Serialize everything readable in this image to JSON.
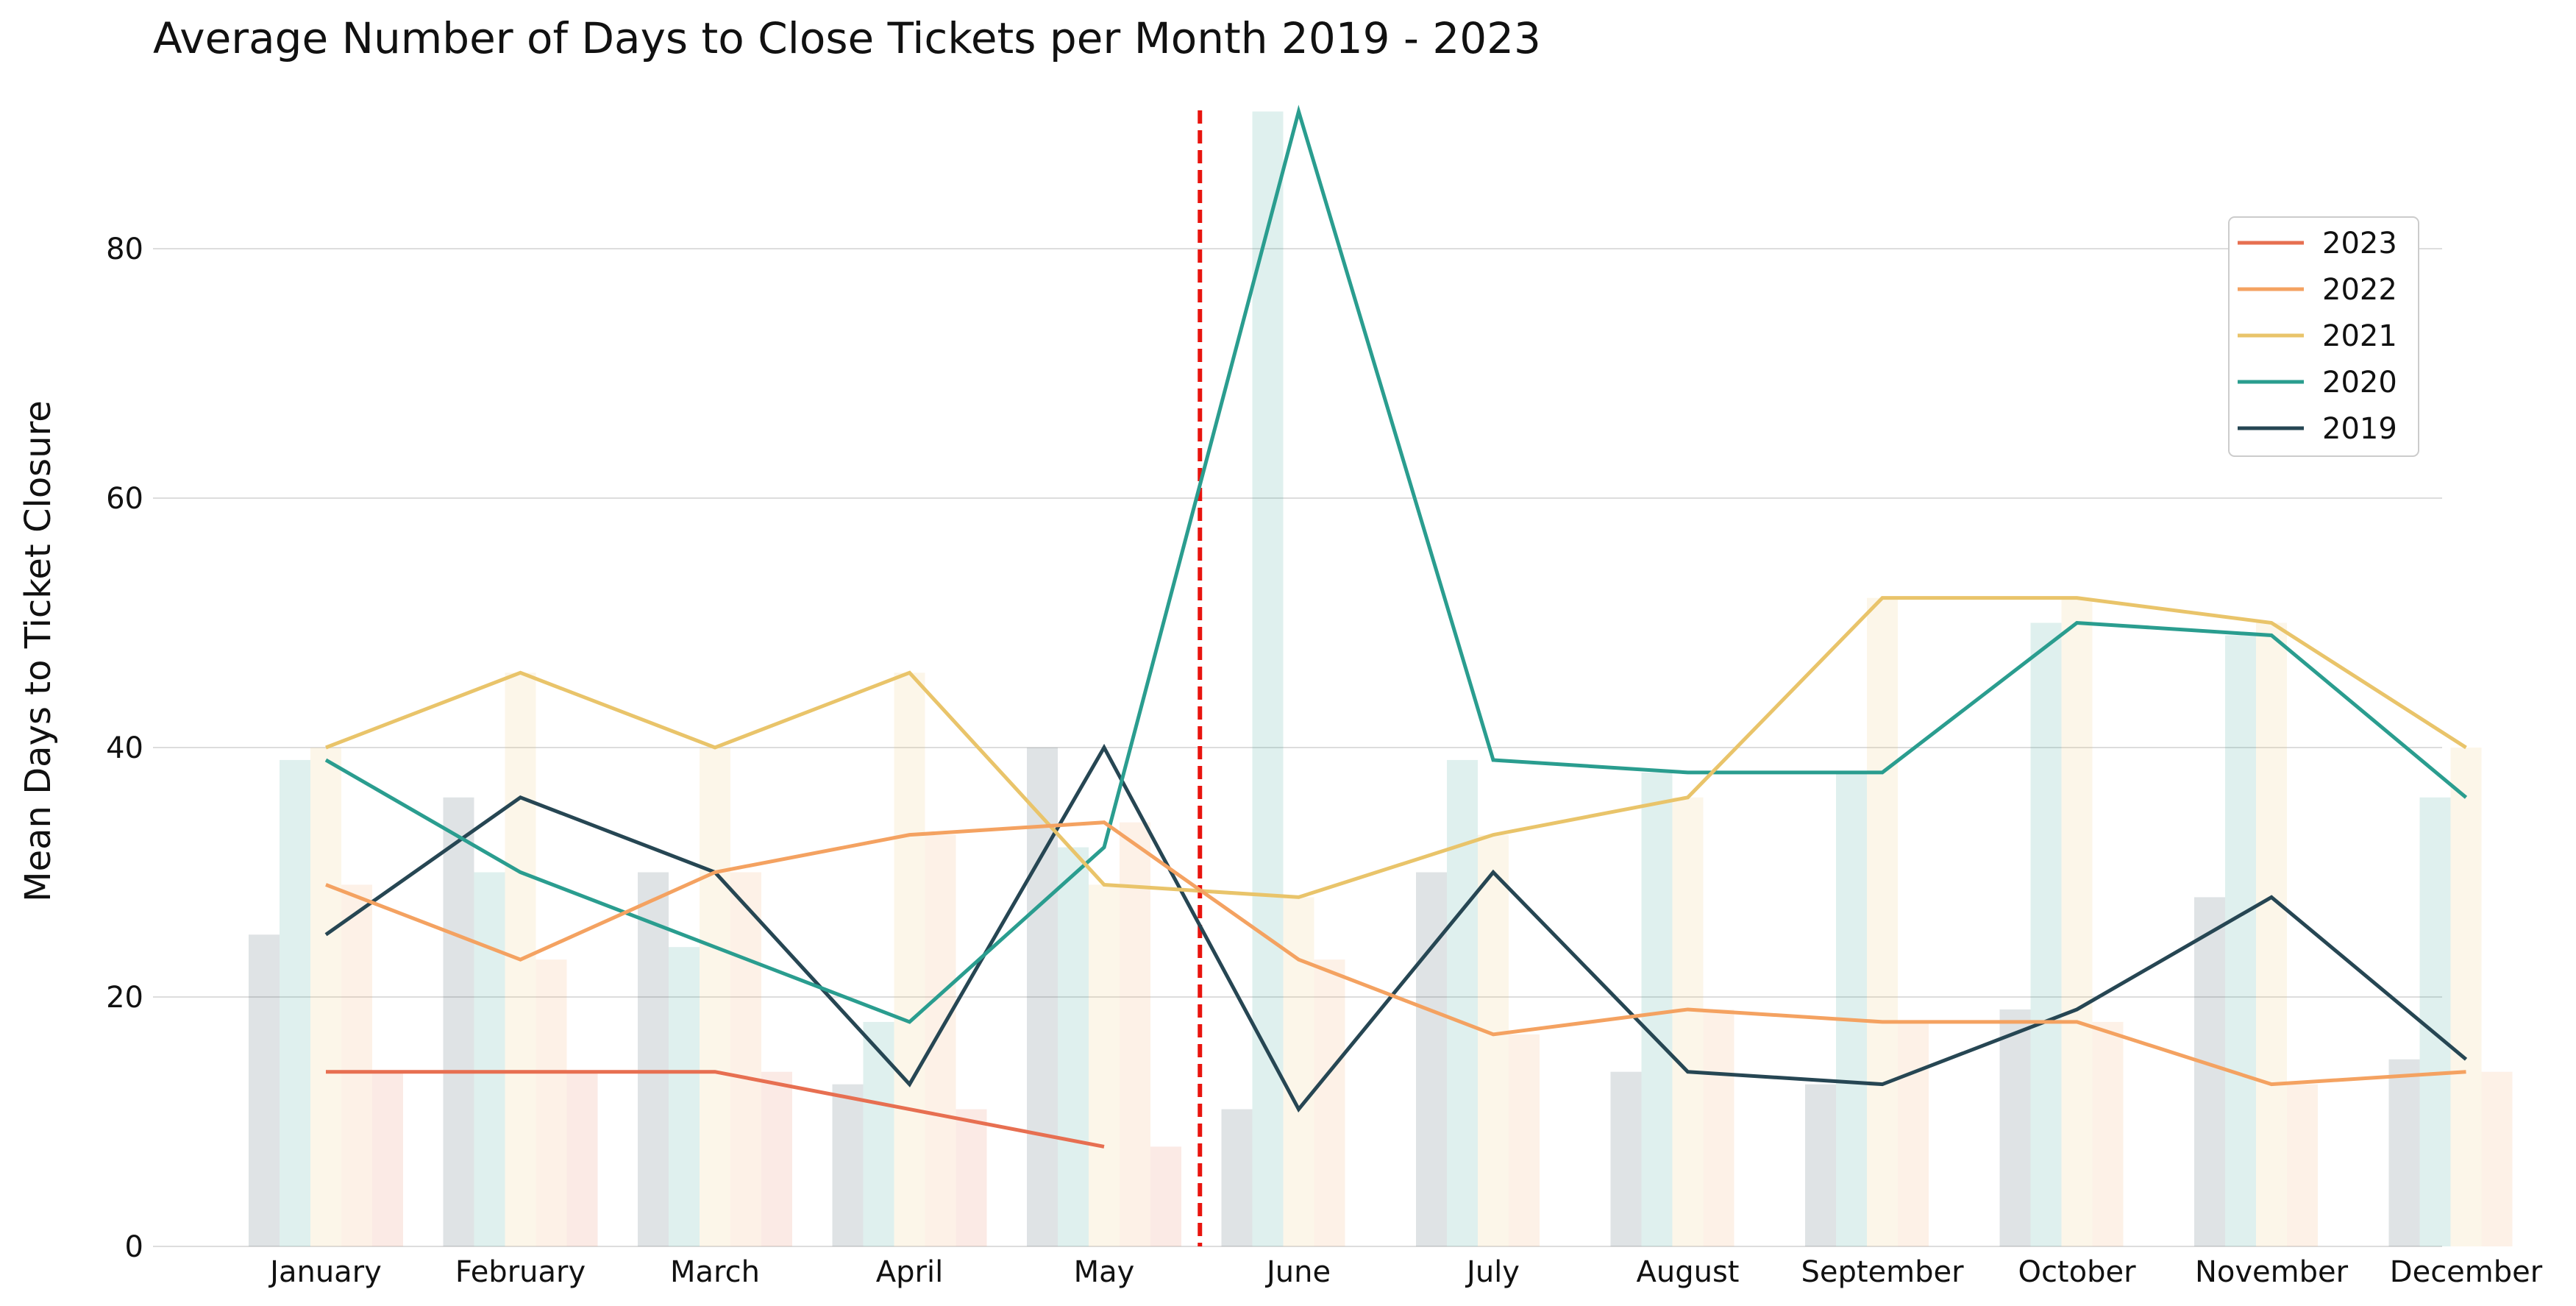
{
  "chart_data": {
    "type": "bar",
    "title": "Average Number of Days to Close Tickets per Month 2019 - 2023",
    "xlabel": "",
    "ylabel": "Mean Days to Ticket Closure",
    "categories": [
      "January",
      "February",
      "March",
      "April",
      "May",
      "June",
      "July",
      "August",
      "September",
      "October",
      "November",
      "December"
    ],
    "ylim": [
      0,
      92
    ],
    "yticks": [
      0,
      20,
      40,
      60,
      80
    ],
    "grid": "horizontal",
    "legend_position": "top-right",
    "reference_line": {
      "after_category": "May",
      "color": "#e8140e",
      "style": "dashed"
    },
    "series": [
      {
        "name": "2023",
        "color": "#e76f51",
        "values": [
          14,
          14,
          14,
          11,
          8,
          null,
          null,
          null,
          null,
          null,
          null,
          null
        ]
      },
      {
        "name": "2022",
        "color": "#f4a261",
        "values": [
          29,
          23,
          30,
          33,
          34,
          23,
          17,
          19,
          18,
          18,
          13,
          14
        ]
      },
      {
        "name": "2021",
        "color": "#e9c46a",
        "values": [
          40,
          46,
          40,
          46,
          29,
          28,
          33,
          36,
          52,
          52,
          50,
          40
        ]
      },
      {
        "name": "2020",
        "color": "#2a9d8f",
        "values": [
          39,
          30,
          24,
          18,
          32,
          91,
          39,
          38,
          38,
          50,
          49,
          36
        ]
      },
      {
        "name": "2019",
        "color": "#264653",
        "values": [
          25,
          36,
          30,
          13,
          40,
          11,
          30,
          14,
          13,
          19,
          28,
          15
        ]
      }
    ],
    "bar_series_order": [
      "2019",
      "2020",
      "2021",
      "2022",
      "2023"
    ],
    "legend_order": [
      "2023",
      "2022",
      "2021",
      "2020",
      "2019"
    ]
  }
}
